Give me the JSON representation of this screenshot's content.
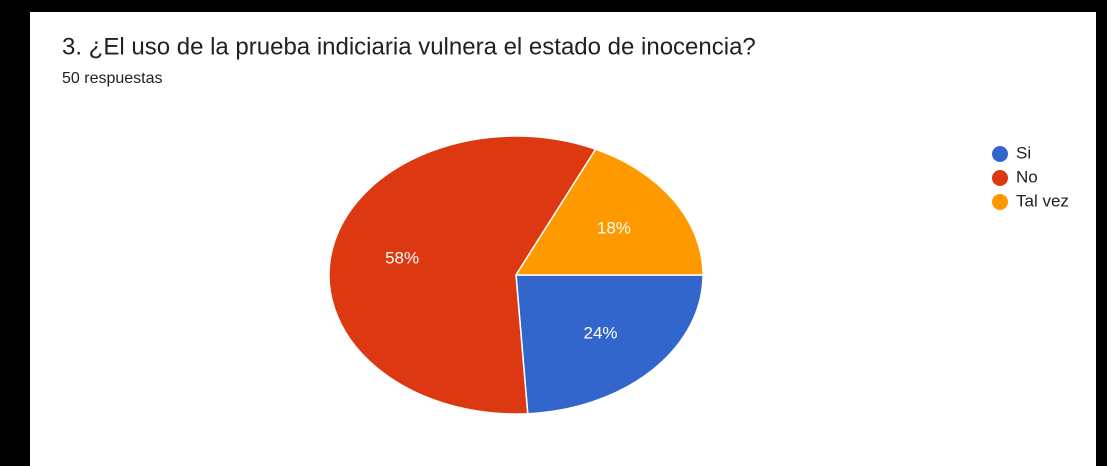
{
  "chart_data": {
    "type": "pie",
    "title": "3. ¿El uso de la prueba indiciaria vulnera el estado de inocencia?",
    "subtitle": "50 respuestas",
    "categories": [
      "Si",
      "No",
      "Tal vez"
    ],
    "values": [
      24,
      58,
      18
    ],
    "value_labels": [
      "24%",
      "58%",
      "18%"
    ],
    "colors": [
      "#3366cc",
      "#dc3912",
      "#ff9900"
    ],
    "legend": "right"
  }
}
